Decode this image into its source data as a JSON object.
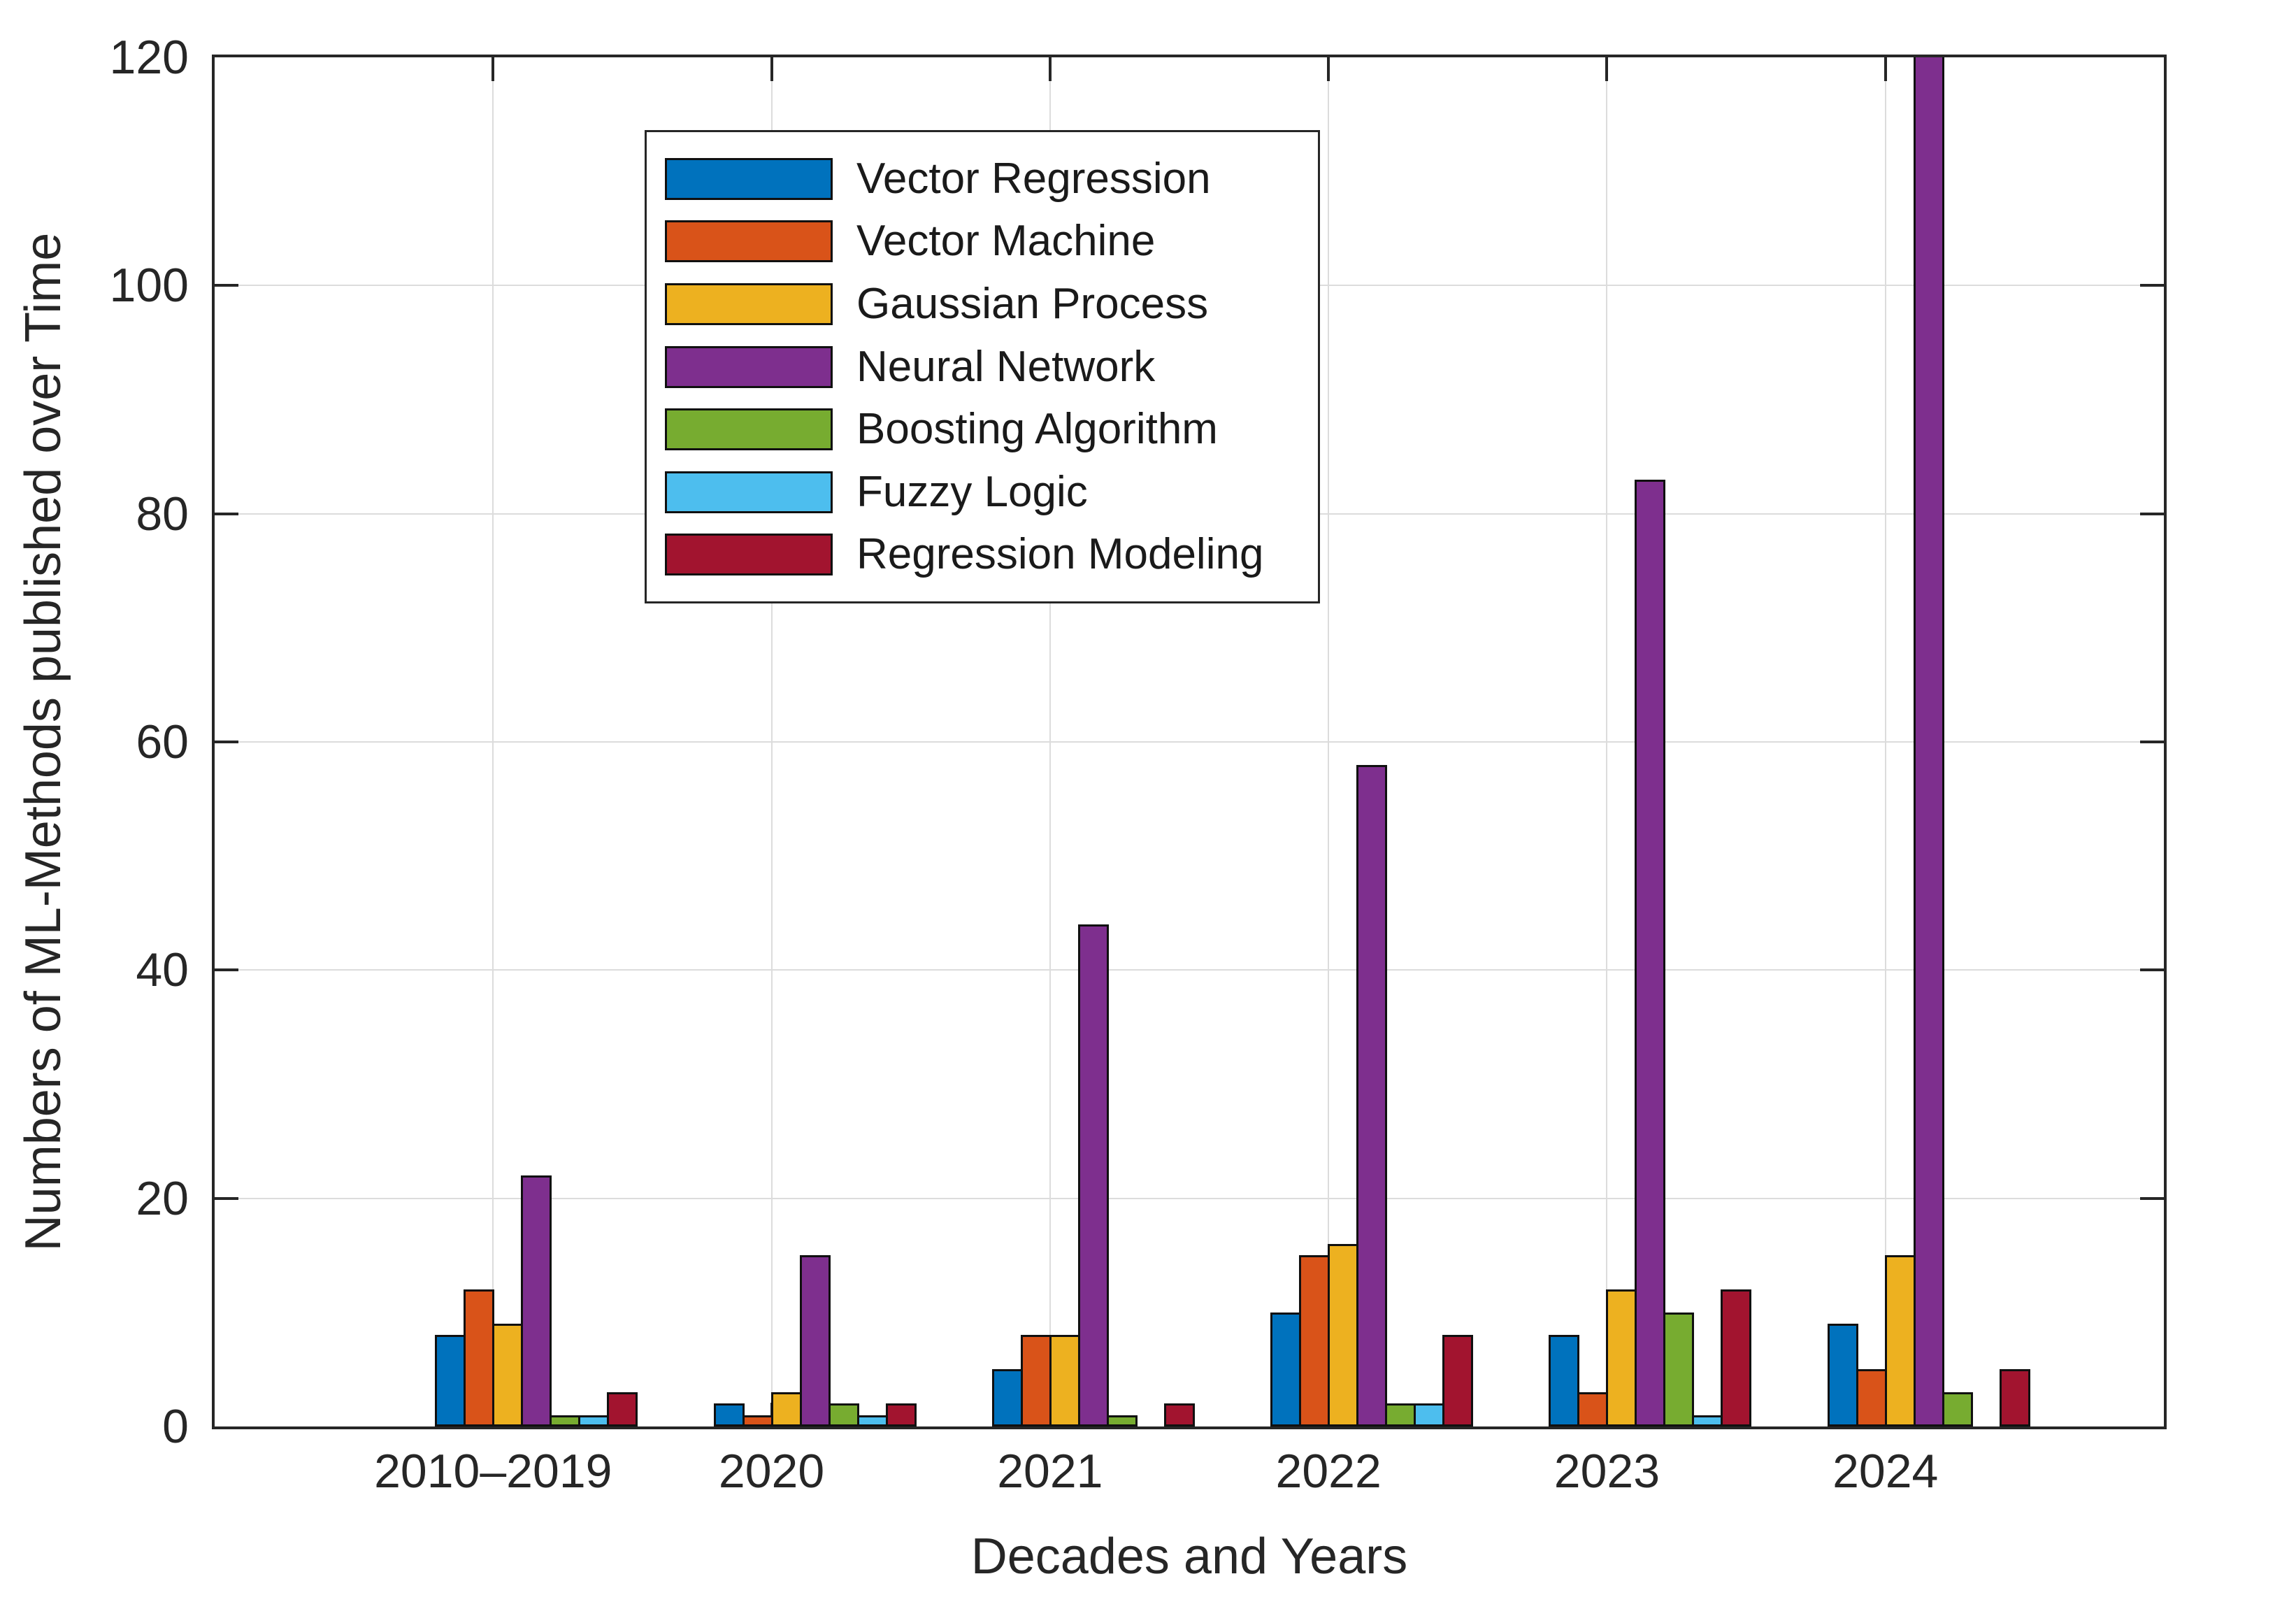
{
  "figure": {
    "background": "#ffffff",
    "axis_color": "#262626",
    "grid_color": "#dcdcdc",
    "bar_edge_color": "#101010"
  },
  "y_axis": {
    "label": "Numbers of ML-Methods published over Time",
    "tick_values": [
      0,
      20,
      40,
      60,
      80,
      100,
      120
    ],
    "min": 0,
    "max": 120
  },
  "x_axis": {
    "label": "Decades and Years",
    "tick_labels": [
      "2010–2019",
      "2020",
      "2021",
      "2022",
      "2023",
      "2024"
    ]
  },
  "legend": {
    "position": "upper-left-inside",
    "entries": [
      {
        "label": "Vector Regression",
        "color": "#0072BD"
      },
      {
        "label": "Vector Machine",
        "color": "#D95319"
      },
      {
        "label": "Gaussian Process",
        "color": "#EDB120"
      },
      {
        "label": "Neural Network",
        "color": "#7E2F8E"
      },
      {
        "label": "Boosting Algorithm",
        "color": "#77AC30"
      },
      {
        "label": "Fuzzy Logic",
        "color": "#4DBEEE"
      },
      {
        "label": "Regression Modeling",
        "color": "#A2142F"
      }
    ]
  },
  "chart_data": {
    "type": "bar",
    "title": "",
    "categories": [
      "2010–2019",
      "2020",
      "2021",
      "2022",
      "2023",
      "2024"
    ],
    "series": [
      {
        "name": "Vector Regression",
        "color": "#0072BD",
        "values": [
          8,
          2,
          5,
          10,
          8,
          9
        ]
      },
      {
        "name": "Vector Machine",
        "color": "#D95319",
        "values": [
          12,
          1,
          8,
          15,
          3,
          5
        ]
      },
      {
        "name": "Gaussian Process",
        "color": "#EDB120",
        "values": [
          9,
          3,
          8,
          16,
          12,
          15
        ]
      },
      {
        "name": "Neural Network",
        "color": "#7E2F8E",
        "values": [
          22,
          15,
          44,
          58,
          83,
          120
        ]
      },
      {
        "name": "Boosting Algorithm",
        "color": "#77AC30",
        "values": [
          1,
          2,
          1,
          2,
          10,
          3
        ]
      },
      {
        "name": "Fuzzy Logic",
        "color": "#4DBEEE",
        "values": [
          1,
          1,
          0,
          2,
          1,
          0
        ]
      },
      {
        "name": "Regression Modeling",
        "color": "#A2142F",
        "values": [
          3,
          2,
          2,
          8,
          12,
          5
        ]
      }
    ],
    "clipped_points": [
      {
        "series": "Neural Network",
        "category": "2024",
        "note": "bar clipped at top of axes, value >= 120"
      }
    ],
    "xlabel": "Decades and Years",
    "ylabel": "Numbers of ML-Methods published over Time",
    "ylim": [
      0,
      120
    ],
    "grid": true,
    "legend_position": "upper-left-inside"
  }
}
